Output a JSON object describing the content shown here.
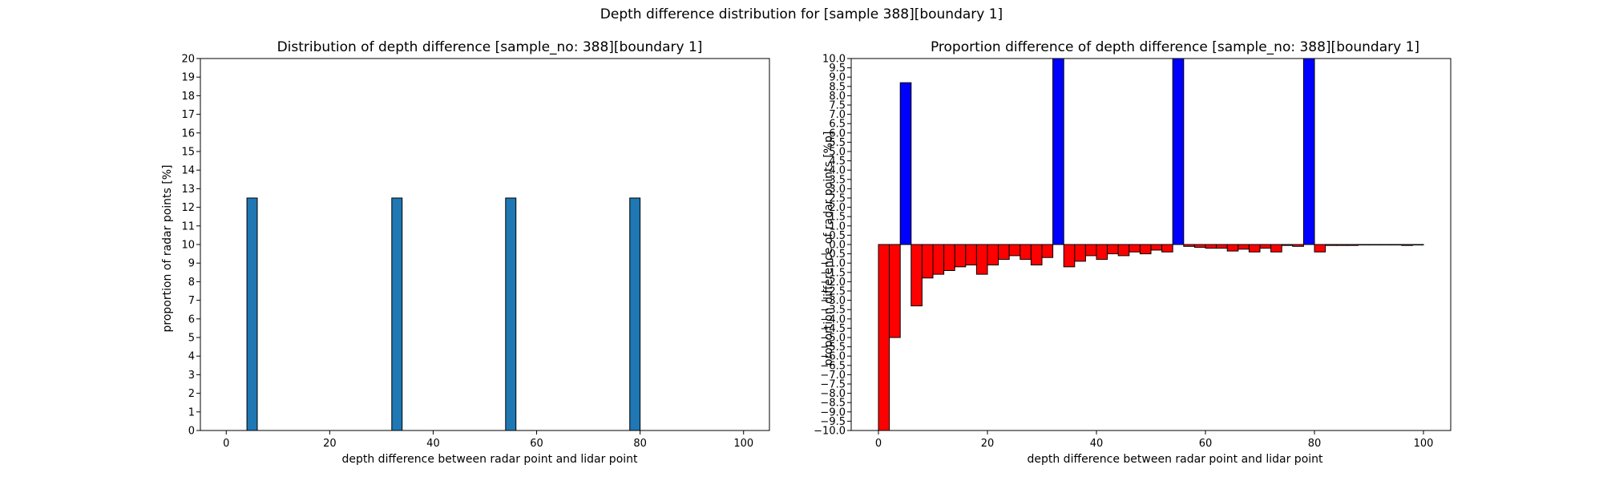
{
  "figure": {
    "title": "Depth difference distribution for [sample 388][boundary 1]"
  },
  "chart_data": [
    {
      "type": "bar",
      "title": "Distribution of depth difference [sample_no: 388][boundary 1]",
      "xlabel": "depth difference between radar point and lidar point",
      "ylabel": "proportion of radar points [%]",
      "xlim": [
        -5,
        105
      ],
      "ylim": [
        0,
        20
      ],
      "xticks": [
        0,
        20,
        40,
        60,
        80,
        100
      ],
      "yticks": [
        0,
        1,
        2,
        3,
        4,
        5,
        6,
        7,
        8,
        9,
        10,
        11,
        12,
        13,
        14,
        15,
        16,
        17,
        18,
        19,
        20
      ],
      "bar_width": 2,
      "bar_color": "#1f77b4",
      "x": [
        4,
        32,
        54,
        78
      ],
      "values": [
        12.5,
        12.5,
        12.5,
        12.5
      ]
    },
    {
      "type": "bar",
      "title": "Proportion difference of depth difference [sample_no: 388][boundary 1]",
      "xlabel": "depth difference between radar point and lidar point",
      "ylabel": "proportion difference of radar points [%p]",
      "xlim": [
        -5,
        105
      ],
      "ylim": [
        -10,
        10
      ],
      "xticks": [
        0,
        20,
        40,
        60,
        80,
        100
      ],
      "yticks": [
        -10.0,
        -9.5,
        -9.0,
        -8.5,
        -8.0,
        -7.5,
        -7.0,
        -6.5,
        -6.0,
        -5.5,
        -5.0,
        -4.5,
        -4.0,
        -3.5,
        -3.0,
        -2.5,
        -2.0,
        -1.5,
        -1.0,
        -0.5,
        0.0,
        0.5,
        1.0,
        1.5,
        2.0,
        2.5,
        3.0,
        3.5,
        4.0,
        4.5,
        5.0,
        5.5,
        6.0,
        6.5,
        7.0,
        7.5,
        8.0,
        8.5,
        9.0,
        9.5,
        10.0
      ],
      "bar_width": 2,
      "positive_color": "#0000ff",
      "negative_color": "#ff0000",
      "x": [
        0,
        2,
        4,
        6,
        8,
        10,
        12,
        14,
        16,
        18,
        20,
        22,
        24,
        26,
        28,
        30,
        32,
        34,
        36,
        38,
        40,
        42,
        44,
        46,
        48,
        50,
        52,
        54,
        56,
        58,
        60,
        62,
        64,
        66,
        68,
        70,
        72,
        74,
        76,
        78,
        80,
        82,
        84,
        86,
        88,
        90,
        92,
        94,
        96,
        98
      ],
      "values": [
        -10.0,
        -5.0,
        8.7,
        -3.3,
        -1.8,
        -1.6,
        -1.4,
        -1.2,
        -1.1,
        -1.6,
        -1.1,
        -0.8,
        -0.6,
        -0.8,
        -1.1,
        -0.7,
        10.0,
        -1.2,
        -0.9,
        -0.6,
        -0.8,
        -0.5,
        -0.6,
        -0.4,
        -0.5,
        -0.3,
        -0.4,
        10.0,
        -0.1,
        -0.15,
        -0.2,
        -0.2,
        -0.35,
        -0.25,
        -0.4,
        -0.2,
        -0.4,
        -0.05,
        -0.1,
        10.0,
        -0.4,
        -0.05,
        -0.05,
        -0.05,
        0.0,
        0.0,
        0.0,
        0.0,
        -0.05,
        0.0
      ]
    }
  ]
}
